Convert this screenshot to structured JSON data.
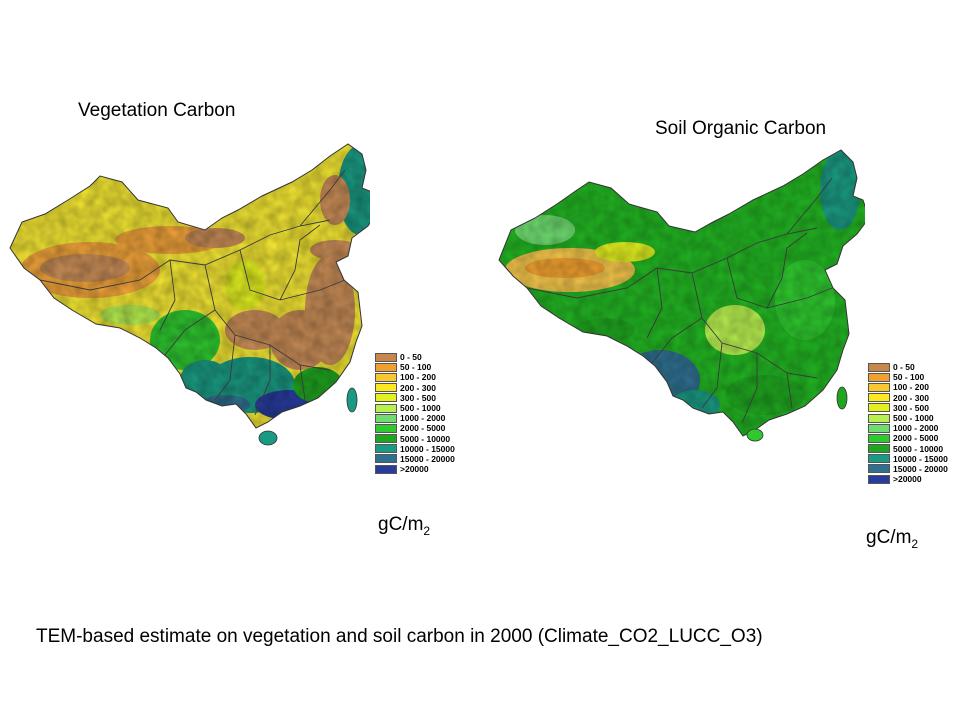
{
  "panels": [
    {
      "title": "Vegetation Carbon",
      "unit_base": "gC/m",
      "unit_exp": "2"
    },
    {
      "title": "Soil Organic Carbon",
      "unit_base": "gC/m",
      "unit_exp": "2"
    }
  ],
  "legend": {
    "classes": [
      {
        "label": "0 - 50",
        "color": "#c8864b"
      },
      {
        "label": "50 - 100",
        "color": "#f0a030"
      },
      {
        "label": "100 - 200",
        "color": "#f9c830"
      },
      {
        "label": "200 - 300",
        "color": "#fbe81e"
      },
      {
        "label": "300 - 500",
        "color": "#e2f020"
      },
      {
        "label": "500 - 1000",
        "color": "#b8f050"
      },
      {
        "label": "1000 - 2000",
        "color": "#6fdc6f"
      },
      {
        "label": "2000 - 5000",
        "color": "#2fc82f"
      },
      {
        "label": "5000 - 10000",
        "color": "#1fa51f"
      },
      {
        "label": "10000 - 15000",
        "color": "#1a9a82"
      },
      {
        "label": "15000 - 20000",
        "color": "#2f6f8f"
      },
      {
        "label": ">20000",
        "color": "#283c9e"
      }
    ]
  },
  "caption": "TEM-based estimate on vegetation and soil carbon in 2000 (Climate_CO2_LUCC_O3)"
}
